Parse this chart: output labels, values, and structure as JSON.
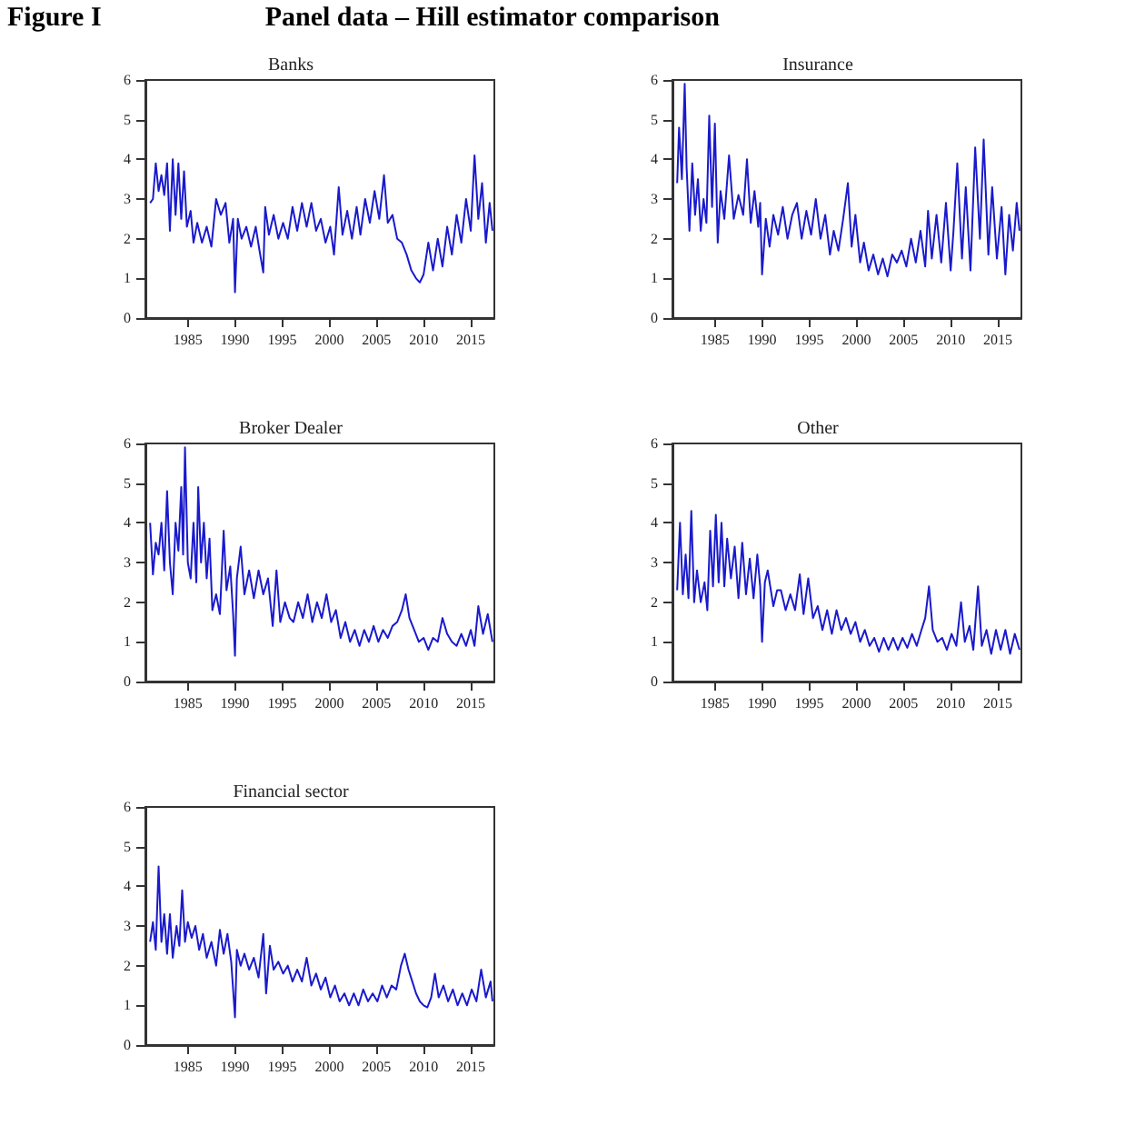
{
  "chart_data": [
    {
      "type": "line",
      "title": "Banks",
      "annotations": [
        "Figure I",
        "Panel data – Hill estimator comparison"
      ],
      "xlim": [
        1980.5,
        2017.5
      ],
      "xticks": [
        1985,
        1990,
        1995,
        2000,
        2005,
        2010,
        2015
      ],
      "ylim": [
        0,
        6
      ],
      "yticks": [
        0,
        1,
        2,
        3,
        4,
        5,
        6
      ],
      "grid": false,
      "marker": "none",
      "line_style": "solid",
      "series": [
        {
          "color": "#1a1acc",
          "x": [
            1981,
            1981.3,
            1981.6,
            1981.9,
            1982.2,
            1982.5,
            1982.8,
            1983.1,
            1983.4,
            1983.7,
            1984,
            1984.3,
            1984.6,
            1984.9,
            1985.3,
            1985.6,
            1986,
            1986.5,
            1987,
            1987.5,
            1988,
            1988.5,
            1989,
            1989.4,
            1989.8,
            1990,
            1990.3,
            1990.7,
            1991.2,
            1991.7,
            1992.2,
            1992.6,
            1993,
            1993.2,
            1993.6,
            1994.1,
            1994.6,
            1995.1,
            1995.6,
            1996.1,
            1996.6,
            1997.1,
            1997.6,
            1998.1,
            1998.6,
            1999.1,
            1999.6,
            2000.1,
            2000.5,
            2001,
            2001.4,
            2001.9,
            2002.4,
            2002.9,
            2003.3,
            2003.8,
            2004.3,
            2004.8,
            2005.3,
            2005.8,
            2006.2,
            2006.7,
            2007.2,
            2007.7,
            2008.2,
            2008.7,
            2009.2,
            2009.6,
            2010,
            2010.5,
            2011,
            2011.5,
            2012,
            2012.5,
            2013,
            2013.5,
            2014,
            2014.5,
            2015,
            2015.4,
            2015.8,
            2016.2,
            2016.6,
            2017,
            2017.3
          ],
          "values": [
            2.9,
            3,
            3.9,
            3.2,
            3.6,
            3.1,
            3.9,
            2.2,
            4,
            2.6,
            3.9,
            2.5,
            3.7,
            2.3,
            2.7,
            1.9,
            2.4,
            1.9,
            2.3,
            1.8,
            3,
            2.6,
            2.9,
            1.9,
            2.5,
            0.65,
            2.5,
            2,
            2.3,
            1.8,
            2.3,
            1.7,
            1.15,
            2.8,
            2.1,
            2.6,
            2,
            2.4,
            2,
            2.8,
            2.2,
            2.9,
            2.3,
            2.9,
            2.2,
            2.5,
            1.9,
            2.3,
            1.6,
            3.3,
            2.1,
            2.7,
            2,
            2.8,
            2.1,
            3,
            2.4,
            3.2,
            2.5,
            3.6,
            2.4,
            2.6,
            2,
            1.9,
            1.6,
            1.2,
            1,
            0.9,
            1.1,
            1.9,
            1.2,
            2,
            1.3,
            2.3,
            1.6,
            2.6,
            1.9,
            3,
            2.2,
            4.1,
            2.5,
            3.4,
            1.9,
            2.9,
            2.2
          ]
        }
      ]
    },
    {
      "type": "line",
      "title": "Insurance",
      "xlim": [
        1980.5,
        2017.5
      ],
      "xticks": [
        1985,
        1990,
        1995,
        2000,
        2005,
        2010,
        2015
      ],
      "ylim": [
        0,
        6
      ],
      "yticks": [
        0,
        1,
        2,
        3,
        4,
        5,
        6
      ],
      "grid": false,
      "marker": "none",
      "line_style": "solid",
      "series": [
        {
          "color": "#1a1acc",
          "x": [
            1981,
            1981.2,
            1981.5,
            1981.8,
            1982,
            1982.3,
            1982.6,
            1982.9,
            1983.2,
            1983.5,
            1983.8,
            1984.1,
            1984.4,
            1984.7,
            1985,
            1985.3,
            1985.6,
            1986,
            1986.5,
            1987,
            1987.5,
            1988,
            1988.4,
            1988.8,
            1989.2,
            1989.6,
            1989.8,
            1990,
            1990.4,
            1990.8,
            1991.2,
            1991.7,
            1992.2,
            1992.7,
            1993.2,
            1993.7,
            1994.2,
            1994.7,
            1995.2,
            1995.7,
            1996.2,
            1996.7,
            1997.2,
            1997.6,
            1998.1,
            1998.6,
            1999.1,
            1999.5,
            1999.9,
            2000.4,
            2000.8,
            2001.3,
            2001.8,
            2002.3,
            2002.8,
            2003.3,
            2003.8,
            2004.3,
            2004.8,
            2005.3,
            2005.8,
            2006.3,
            2006.8,
            2007.3,
            2007.6,
            2008,
            2008.5,
            2009,
            2009.5,
            2010,
            2010.3,
            2010.7,
            2011.2,
            2011.6,
            2012.1,
            2012.6,
            2013.1,
            2013.5,
            2014,
            2014.4,
            2014.9,
            2015.4,
            2015.8,
            2016.2,
            2016.6,
            2017,
            2017.3
          ],
          "values": [
            3.4,
            4.8,
            3.5,
            5.9,
            3.8,
            2.2,
            3.9,
            2.6,
            3.5,
            2.2,
            3,
            2.4,
            5.1,
            2.8,
            4.9,
            1.9,
            3.2,
            2.5,
            4.1,
            2.5,
            3.1,
            2.6,
            4,
            2.4,
            3.2,
            2.3,
            2.9,
            1.1,
            2.5,
            1.8,
            2.6,
            2.1,
            2.8,
            2,
            2.6,
            2.9,
            2,
            2.7,
            2.1,
            3,
            2,
            2.6,
            1.6,
            2.2,
            1.7,
            2.5,
            3.4,
            1.8,
            2.6,
            1.4,
            1.9,
            1.2,
            1.6,
            1.1,
            1.5,
            1.05,
            1.6,
            1.4,
            1.7,
            1.3,
            2,
            1.4,
            2.2,
            1.3,
            2.7,
            1.5,
            2.6,
            1.4,
            2.9,
            1.2,
            2.2,
            3.9,
            1.5,
            3.3,
            1.2,
            4.3,
            2,
            4.5,
            1.6,
            3.3,
            1.5,
            2.8,
            1.1,
            2.6,
            1.7,
            2.9,
            2.2
          ]
        }
      ]
    },
    {
      "type": "line",
      "title": "Broker Dealer",
      "xlim": [
        1980.5,
        2017.5
      ],
      "xticks": [
        1985,
        1990,
        1995,
        2000,
        2005,
        2010,
        2015
      ],
      "ylim": [
        0,
        6
      ],
      "yticks": [
        0,
        1,
        2,
        3,
        4,
        5,
        6
      ],
      "grid": false,
      "marker": "none",
      "line_style": "solid",
      "series": [
        {
          "color": "#1a1acc",
          "x": [
            1981,
            1981.3,
            1981.6,
            1981.9,
            1982.2,
            1982.5,
            1982.8,
            1983.1,
            1983.4,
            1983.7,
            1984,
            1984.3,
            1984.5,
            1984.7,
            1985,
            1985.3,
            1985.6,
            1985.9,
            1986.1,
            1986.4,
            1986.7,
            1987,
            1987.3,
            1987.6,
            1988,
            1988.4,
            1988.8,
            1989.1,
            1989.5,
            1989.8,
            1990,
            1990.2,
            1990.6,
            1991,
            1991.5,
            1992,
            1992.5,
            1993,
            1993.5,
            1994,
            1994.4,
            1994.8,
            1995.3,
            1995.8,
            1996.2,
            1996.7,
            1997.2,
            1997.7,
            1998.2,
            1998.7,
            1999.2,
            1999.7,
            2000.2,
            2000.7,
            2001.2,
            2001.7,
            2002.2,
            2002.7,
            2003.2,
            2003.7,
            2004.2,
            2004.7,
            2005.2,
            2005.7,
            2006.2,
            2006.7,
            2007.2,
            2007.7,
            2008.1,
            2008.5,
            2009,
            2009.5,
            2010,
            2010.5,
            2011,
            2011.5,
            2012,
            2012.5,
            2013,
            2013.5,
            2014,
            2014.5,
            2015,
            2015.4,
            2015.8,
            2016.3,
            2016.8,
            2017.3
          ],
          "values": [
            4,
            2.7,
            3.5,
            3.2,
            4,
            2.8,
            4.8,
            3,
            2.2,
            4,
            3.3,
            4.9,
            3.2,
            5.9,
            3,
            2.6,
            4,
            2.5,
            4.9,
            3,
            4,
            2.6,
            3.6,
            1.8,
            2.2,
            1.7,
            3.8,
            2.3,
            2.9,
            1.7,
            0.65,
            2.6,
            3.4,
            2.2,
            2.8,
            2.1,
            2.8,
            2.2,
            2.6,
            1.4,
            2.8,
            1.5,
            2,
            1.6,
            1.5,
            2,
            1.6,
            2.2,
            1.5,
            2,
            1.6,
            2.2,
            1.5,
            1.8,
            1.1,
            1.5,
            1,
            1.3,
            0.9,
            1.3,
            1,
            1.4,
            1,
            1.3,
            1.1,
            1.4,
            1.5,
            1.8,
            2.2,
            1.6,
            1.3,
            1,
            1.1,
            0.8,
            1.1,
            1,
            1.6,
            1.2,
            1,
            0.9,
            1.2,
            0.9,
            1.3,
            0.9,
            1.9,
            1.2,
            1.7,
            1
          ]
        }
      ]
    },
    {
      "type": "line",
      "title": "Other",
      "xlim": [
        1980.5,
        2017.5
      ],
      "xticks": [
        1985,
        1990,
        1995,
        2000,
        2005,
        2010,
        2015
      ],
      "ylim": [
        0,
        6
      ],
      "yticks": [
        0,
        1,
        2,
        3,
        4,
        5,
        6
      ],
      "grid": false,
      "marker": "none",
      "line_style": "solid",
      "series": [
        {
          "color": "#1a1acc",
          "x": [
            1981,
            1981.3,
            1981.6,
            1981.9,
            1982.2,
            1982.5,
            1982.8,
            1983.1,
            1983.5,
            1983.9,
            1984.2,
            1984.5,
            1984.8,
            1985.1,
            1985.4,
            1985.7,
            1986,
            1986.3,
            1986.7,
            1987.1,
            1987.5,
            1987.9,
            1988.3,
            1988.7,
            1989.1,
            1989.5,
            1989.8,
            1990,
            1990.3,
            1990.6,
            1991.2,
            1991.6,
            1992,
            1992.5,
            1993,
            1993.5,
            1994,
            1994.4,
            1994.9,
            1995.4,
            1995.9,
            1996.4,
            1996.9,
            1997.4,
            1997.9,
            1998.4,
            1998.9,
            1999.4,
            1999.9,
            2000.4,
            2000.9,
            2001.4,
            2001.9,
            2002.4,
            2002.9,
            2003.4,
            2003.9,
            2004.4,
            2004.9,
            2005.4,
            2005.9,
            2006.4,
            2006.9,
            2007.3,
            2007.7,
            2008.1,
            2008.6,
            2009.1,
            2009.6,
            2010.1,
            2010.6,
            2011.1,
            2011.5,
            2012,
            2012.4,
            2012.9,
            2013.3,
            2013.8,
            2014.3,
            2014.8,
            2015.3,
            2015.8,
            2016.3,
            2016.8,
            2017.3
          ],
          "values": [
            2.3,
            4,
            2.2,
            3.2,
            2.1,
            4.3,
            2,
            2.8,
            2,
            2.5,
            1.8,
            3.8,
            2.4,
            4.2,
            2.5,
            4,
            2.4,
            3.6,
            2.6,
            3.4,
            2.1,
            3.5,
            2.2,
            3.1,
            2.1,
            3.2,
            2.4,
            1,
            2.5,
            2.8,
            1.9,
            2.3,
            2.3,
            1.8,
            2.2,
            1.8,
            2.7,
            1.7,
            2.6,
            1.6,
            1.9,
            1.3,
            1.8,
            1.2,
            1.8,
            1.3,
            1.6,
            1.2,
            1.5,
            1,
            1.3,
            0.9,
            1.1,
            0.75,
            1.1,
            0.8,
            1.1,
            0.8,
            1.1,
            0.85,
            1.2,
            0.9,
            1.3,
            1.6,
            2.4,
            1.3,
            1,
            1.1,
            0.8,
            1.2,
            0.9,
            2,
            1,
            1.4,
            0.8,
            2.4,
            0.9,
            1.3,
            0.7,
            1.3,
            0.8,
            1.3,
            0.7,
            1.2,
            0.8
          ]
        }
      ]
    },
    {
      "type": "line",
      "title": "Financial sector",
      "xlim": [
        1980.5,
        2017.5
      ],
      "xticks": [
        1985,
        1990,
        1995,
        2000,
        2005,
        2010,
        2015
      ],
      "ylim": [
        0,
        6
      ],
      "yticks": [
        0,
        1,
        2,
        3,
        4,
        5,
        6
      ],
      "grid": false,
      "marker": "none",
      "line_style": "solid",
      "series": [
        {
          "color": "#1a1acc",
          "x": [
            1981,
            1981.3,
            1981.6,
            1981.9,
            1982.2,
            1982.5,
            1982.8,
            1983.1,
            1983.4,
            1983.8,
            1984.1,
            1984.4,
            1984.7,
            1985,
            1985.4,
            1985.8,
            1986.2,
            1986.6,
            1987,
            1987.5,
            1988,
            1988.4,
            1988.8,
            1989.2,
            1989.6,
            1990,
            1990.2,
            1990.6,
            1991,
            1991.5,
            1992,
            1992.5,
            1993,
            1993.3,
            1993.7,
            1994.1,
            1994.6,
            1995.1,
            1995.6,
            1996.1,
            1996.6,
            1997.1,
            1997.6,
            1998.1,
            1998.6,
            1999.1,
            1999.6,
            2000.1,
            2000.6,
            2001.1,
            2001.6,
            2002.1,
            2002.6,
            2003.1,
            2003.6,
            2004.1,
            2004.6,
            2005.1,
            2005.6,
            2006.1,
            2006.6,
            2007.1,
            2007.6,
            2008,
            2008.4,
            2008.8,
            2009.2,
            2009.6,
            2010,
            2010.4,
            2010.8,
            2011.2,
            2011.6,
            2012.1,
            2012.6,
            2013.1,
            2013.6,
            2014.1,
            2014.6,
            2015.1,
            2015.6,
            2016.1,
            2016.6,
            2017.1,
            2017.3
          ],
          "values": [
            2.6,
            3.1,
            2.4,
            4.5,
            2.6,
            3.3,
            2.3,
            3.3,
            2.2,
            3,
            2.5,
            3.9,
            2.6,
            3.1,
            2.7,
            3,
            2.4,
            2.8,
            2.2,
            2.6,
            2,
            2.9,
            2.3,
            2.8,
            2.1,
            0.7,
            2.4,
            2,
            2.3,
            1.9,
            2.2,
            1.7,
            2.8,
            1.3,
            2.5,
            1.9,
            2.1,
            1.8,
            2,
            1.6,
            1.9,
            1.6,
            2.2,
            1.5,
            1.8,
            1.4,
            1.7,
            1.2,
            1.5,
            1.1,
            1.3,
            1,
            1.3,
            1,
            1.4,
            1.1,
            1.3,
            1.1,
            1.5,
            1.2,
            1.5,
            1.4,
            2,
            2.3,
            1.9,
            1.6,
            1.3,
            1.1,
            1,
            0.95,
            1.2,
            1.8,
            1.2,
            1.5,
            1.1,
            1.4,
            1,
            1.3,
            1,
            1.4,
            1.1,
            1.9,
            1.2,
            1.6,
            1.1
          ]
        }
      ]
    }
  ]
}
